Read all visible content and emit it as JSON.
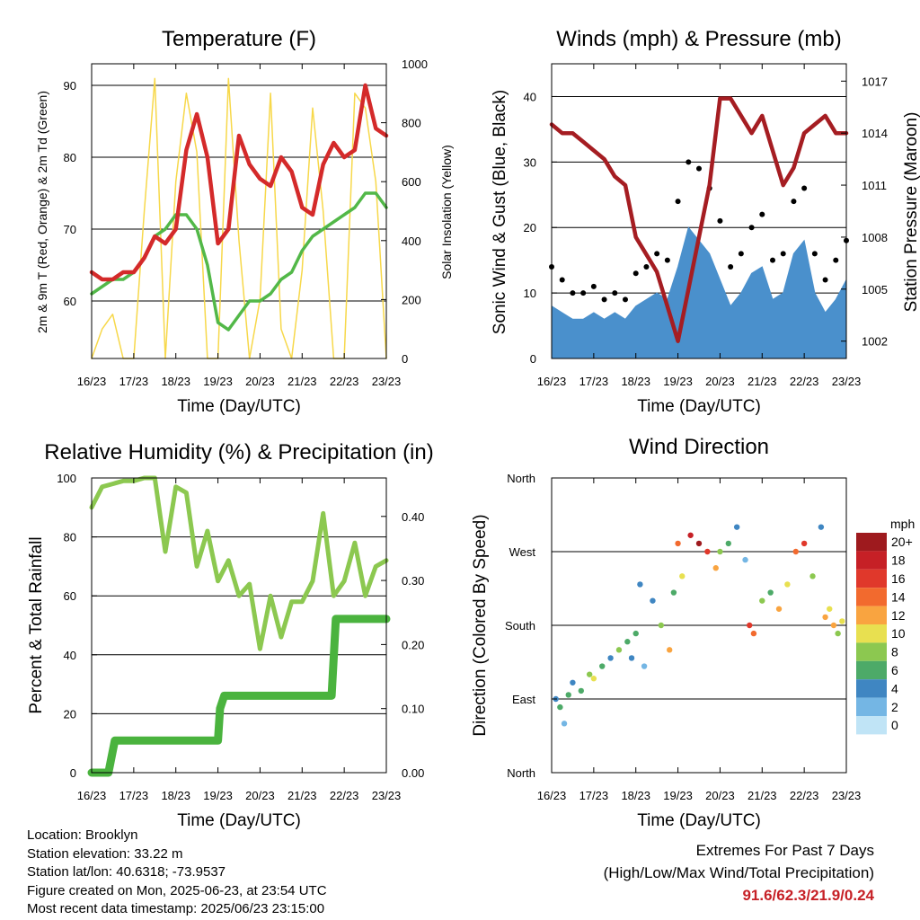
{
  "x_ticks": [
    "16/23",
    "17/23",
    "18/23",
    "19/23",
    "20/23",
    "21/23",
    "22/23",
    "23/23"
  ],
  "xlabel": "Time (Day/UTC)",
  "temp": {
    "title": "Temperature (F)",
    "ylabel_left": "2m & 9m T (Red, Orange) & 2m Td (Green)",
    "ylabel_right": "Solar Insolation (Yellow)",
    "left_ticks": [
      "60",
      "70",
      "80",
      "90"
    ],
    "right_ticks": [
      "0",
      "200",
      "400",
      "600",
      "800",
      "1000"
    ]
  },
  "wind": {
    "title": "Winds (mph) & Pressure (mb)",
    "ylabel_left": "Sonic Wind & Gust (Blue, Black)",
    "ylabel_right": "Station Pressure (Maroon)",
    "left_ticks": [
      "0",
      "10",
      "20",
      "30",
      "40"
    ],
    "right_ticks": [
      "1002",
      "1005",
      "1008",
      "1011",
      "1014",
      "1017"
    ]
  },
  "rh": {
    "title": "Relative Humidity (%) & Precipitation (in)",
    "ylabel_left": "Percent & Total Rainfall",
    "left_ticks": [
      "0",
      "20",
      "40",
      "60",
      "80",
      "100"
    ],
    "right_ticks": [
      "0.00",
      "0.10",
      "0.20",
      "0.30",
      "0.40"
    ]
  },
  "dir": {
    "title": "Wind Direction",
    "ylabel_left": "Direction (Colored By Speed)",
    "y_ticks": [
      "North",
      "East",
      "South",
      "West",
      "North"
    ],
    "legend_title": "mph",
    "legend_labels": [
      "20+",
      "18",
      "16",
      "14",
      "12",
      "10",
      "8",
      "6",
      "4",
      "2",
      "0"
    ],
    "legend_colors": [
      "#9e1a1e",
      "#c62026",
      "#e0382b",
      "#f26a2e",
      "#f9a440",
      "#e8e050",
      "#8cc850",
      "#4daa68",
      "#3f86c2",
      "#74b6e4",
      "#c0e4f6"
    ]
  },
  "info": {
    "location": "Location: Brooklyn",
    "elevation": "Station elevation: 33.22 m",
    "latlon": "Station lat/lon: 40.6318; -73.9537",
    "created": "Figure created on Mon, 2025-06-23, at 23:54 UTC",
    "recent": "Most recent data timestamp: 2025/06/23 23:15:00"
  },
  "extremes": {
    "line1": "Extremes For Past 7 Days",
    "line2": "(High/Low/Max Wind/Total Precipitation)",
    "values": "91.6/62.3/21.9/0.24"
  },
  "chart_data": [
    {
      "type": "line",
      "title": "Temperature (F)",
      "xlabel": "Time (Day/UTC)",
      "ylabel": "2m & 9m T (Red, Orange) & 2m Td (Green)",
      "ylabel_right": "Solar Insolation (Yellow)",
      "ylim": [
        52,
        93
      ],
      "ylim_right": [
        0,
        1000
      ],
      "x": [
        0,
        0.25,
        0.5,
        0.75,
        1,
        1.25,
        1.5,
        1.75,
        2,
        2.25,
        2.5,
        2.75,
        3,
        3.25,
        3.5,
        3.75,
        4,
        4.25,
        4.5,
        4.75,
        5,
        5.25,
        5.5,
        5.75,
        6,
        6.25,
        6.5,
        6.75,
        7
      ],
      "series": [
        {
          "name": "2m & 9m T",
          "color": "#d42a2a",
          "values": [
            64,
            63,
            63,
            64,
            64,
            66,
            69,
            68,
            70,
            81,
            86,
            80,
            68,
            70,
            83,
            79,
            77,
            76,
            80,
            78,
            73,
            72,
            79,
            82,
            80,
            81,
            90,
            84,
            83
          ]
        },
        {
          "name": "2m Td",
          "color": "#52b848",
          "values": [
            61,
            62,
            63,
            63,
            64,
            66,
            69,
            70,
            72,
            72,
            70,
            65,
            57,
            56,
            58,
            60,
            60,
            61,
            63,
            64,
            67,
            69,
            70,
            71,
            72,
            73,
            75,
            75,
            73
          ]
        },
        {
          "name": "Solar Insolation",
          "color": "#f7d84a",
          "axis": "right",
          "values": [
            0,
            100,
            150,
            0,
            0,
            500,
            950,
            0,
            600,
            900,
            700,
            0,
            0,
            950,
            400,
            0,
            200,
            900,
            100,
            0,
            300,
            850,
            500,
            0,
            0,
            900,
            850,
            600,
            0
          ]
        }
      ]
    },
    {
      "type": "line",
      "title": "Winds (mph) & Pressure (mb)",
      "xlabel": "Time (Day/UTC)",
      "ylabel": "Sonic Wind & Gust (Blue, Black)",
      "ylabel_right": "Station Pressure (Maroon)",
      "ylim": [
        0,
        45
      ],
      "ylim_right": [
        1001,
        1018
      ],
      "x": [
        0,
        0.25,
        0.5,
        0.75,
        1,
        1.25,
        1.5,
        1.75,
        2,
        2.25,
        2.5,
        2.75,
        3,
        3.25,
        3.5,
        3.75,
        4,
        4.25,
        4.5,
        4.75,
        5,
        5.25,
        5.5,
        5.75,
        6,
        6.25,
        6.5,
        6.75,
        7
      ],
      "series": [
        {
          "name": "Sonic Wind",
          "color": "#4a90cc",
          "values": [
            8,
            7,
            6,
            6,
            7,
            6,
            7,
            6,
            8,
            9,
            10,
            9,
            14,
            20,
            18,
            16,
            12,
            8,
            10,
            13,
            14,
            9,
            10,
            16,
            18,
            10,
            7,
            9,
            12
          ]
        },
        {
          "name": "Gust",
          "color": "#000000",
          "values": [
            14,
            12,
            10,
            10,
            11,
            9,
            10,
            9,
            13,
            14,
            16,
            15,
            24,
            30,
            29,
            26,
            21,
            14,
            16,
            20,
            22,
            15,
            16,
            24,
            26,
            16,
            12,
            15,
            18
          ]
        },
        {
          "name": "Station Pressure",
          "color": "#a51d22",
          "axis": "right",
          "values": [
            1014.5,
            1014,
            1014,
            1013.5,
            1013,
            1012.5,
            1011.5,
            1011,
            1008,
            1007,
            1006,
            1004,
            1002,
            1005,
            1008,
            1011,
            1016,
            1016,
            1015,
            1014,
            1015,
            1013,
            1011,
            1012,
            1014,
            1014.5,
            1015,
            1014,
            1014
          ]
        }
      ]
    },
    {
      "type": "line",
      "title": "Relative Humidity (%) & Precipitation (in)",
      "xlabel": "Time (Day/UTC)",
      "ylabel": "Percent & Total Rainfall",
      "ylim": [
        0,
        100
      ],
      "ylim_right": [
        0,
        0.46
      ],
      "x": [
        0,
        0.25,
        0.5,
        0.75,
        1,
        1.25,
        1.5,
        1.75,
        2,
        2.25,
        2.5,
        2.75,
        3,
        3.25,
        3.5,
        3.75,
        4,
        4.25,
        4.5,
        4.75,
        5,
        5.25,
        5.5,
        5.75,
        6,
        6.25,
        6.5,
        6.75,
        7
      ],
      "series": [
        {
          "name": "Relative Humidity",
          "color": "#8cc850",
          "values": [
            90,
            97,
            98,
            99,
            99,
            100,
            100,
            75,
            97,
            95,
            70,
            82,
            65,
            72,
            60,
            64,
            42,
            60,
            46,
            58,
            58,
            65,
            88,
            60,
            65,
            78,
            60,
            70,
            72
          ]
        },
        {
          "name": "Total Rainfall",
          "color": "#4ab33e",
          "axis": "right",
          "x": [
            0,
            0.4,
            0.55,
            3.0,
            3.05,
            3.15,
            5.7,
            5.8,
            7
          ],
          "values": [
            0,
            0,
            0.05,
            0.05,
            0.1,
            0.12,
            0.12,
            0.24,
            0.24
          ]
        }
      ]
    },
    {
      "type": "scatter",
      "title": "Wind Direction",
      "xlabel": "Time (Day/UTC)",
      "ylabel": "Direction (Colored By Speed)",
      "y_categories": [
        "North",
        "East",
        "South",
        "West",
        "North"
      ],
      "ylim": [
        0,
        360
      ],
      "legend": "right",
      "points": [
        [
          0.1,
          90,
          4
        ],
        [
          0.2,
          80,
          6
        ],
        [
          0.3,
          60,
          2
        ],
        [
          0.4,
          95,
          6
        ],
        [
          0.5,
          110,
          4
        ],
        [
          0.7,
          100,
          6
        ],
        [
          0.9,
          120,
          8
        ],
        [
          1.0,
          115,
          10
        ],
        [
          1.2,
          130,
          6
        ],
        [
          1.4,
          140,
          4
        ],
        [
          1.6,
          150,
          8
        ],
        [
          1.8,
          160,
          6
        ],
        [
          1.9,
          140,
          4
        ],
        [
          2.0,
          170,
          6
        ],
        [
          2.1,
          230,
          4
        ],
        [
          2.2,
          130,
          2
        ],
        [
          2.4,
          210,
          4
        ],
        [
          2.6,
          180,
          8
        ],
        [
          2.8,
          150,
          12
        ],
        [
          2.9,
          220,
          6
        ],
        [
          3.0,
          280,
          14
        ],
        [
          3.1,
          240,
          10
        ],
        [
          3.3,
          290,
          18
        ],
        [
          3.5,
          280,
          20
        ],
        [
          3.7,
          270,
          16
        ],
        [
          3.9,
          250,
          12
        ],
        [
          4.0,
          270,
          8
        ],
        [
          4.2,
          280,
          6
        ],
        [
          4.4,
          300,
          4
        ],
        [
          4.6,
          260,
          2
        ],
        [
          4.7,
          180,
          16
        ],
        [
          4.8,
          170,
          14
        ],
        [
          5.0,
          210,
          8
        ],
        [
          5.2,
          220,
          6
        ],
        [
          5.4,
          200,
          12
        ],
        [
          5.6,
          230,
          10
        ],
        [
          5.8,
          270,
          14
        ],
        [
          6.0,
          280,
          16
        ],
        [
          6.2,
          240,
          8
        ],
        [
          6.4,
          300,
          4
        ],
        [
          6.5,
          190,
          12
        ],
        [
          6.6,
          200,
          10
        ],
        [
          6.7,
          180,
          12
        ],
        [
          6.8,
          170,
          8
        ],
        [
          6.9,
          185,
          10
        ]
      ]
    }
  ]
}
